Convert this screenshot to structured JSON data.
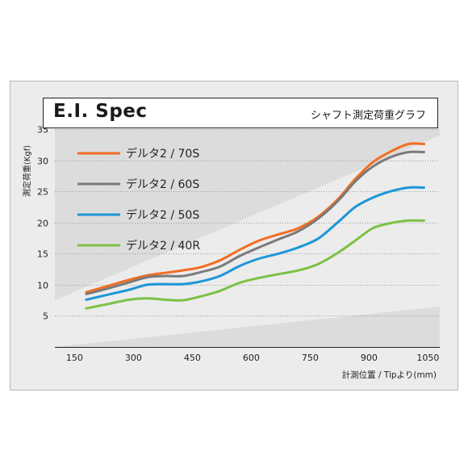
{
  "header": {
    "title": "E.I. Spec",
    "subtitle": "シャフト測定荷重グラフ"
  },
  "chart_data": {
    "type": "line",
    "title": "E.I. Spec",
    "subtitle": "シャフト測定荷重グラフ",
    "xlabel": "計測位置 / Tipより(mm)",
    "ylabel": "測定荷重(Kgf)",
    "xlim": [
      100,
      1080
    ],
    "ylim": [
      0,
      35
    ],
    "xticks": [
      "150",
      "300",
      "450",
      "600",
      "750",
      "900",
      "1050"
    ],
    "yticks": [
      "5",
      "10",
      "15",
      "20",
      "25",
      "30",
      "35"
    ],
    "legend_position": "top-left",
    "grid": true,
    "x": [
      180,
      235,
      290,
      335,
      380,
      425,
      470,
      520,
      570,
      620,
      670,
      720,
      770,
      820,
      865,
      910,
      955,
      1000,
      1040
    ],
    "series": [
      {
        "name": "デルタ2 / 70S",
        "color": "#f26d21",
        "values": [
          8.8,
          9.8,
          10.8,
          11.5,
          11.9,
          12.3,
          12.8,
          13.9,
          15.6,
          17.1,
          18.1,
          19.1,
          20.9,
          23.7,
          27.0,
          29.7,
          31.4,
          32.6,
          32.6
        ]
      },
      {
        "name": "デルタ2 / 60S",
        "color": "#7a7a7a",
        "values": [
          8.5,
          9.4,
          10.4,
          11.2,
          11.4,
          11.4,
          12.0,
          12.9,
          14.6,
          16.0,
          17.3,
          18.6,
          20.6,
          23.4,
          26.6,
          29.0,
          30.5,
          31.3,
          31.3
        ]
      },
      {
        "name": "デルタ2 / 50S",
        "color": "#1d96d8",
        "values": [
          7.6,
          8.4,
          9.2,
          10.0,
          10.1,
          10.1,
          10.5,
          11.4,
          13.0,
          14.2,
          15.0,
          16.0,
          17.4,
          20.0,
          22.5,
          24.0,
          25.0,
          25.6,
          25.6
        ]
      },
      {
        "name": "デルタ2 / 40R",
        "color": "#7cc144",
        "values": [
          6.2,
          6.9,
          7.6,
          7.8,
          7.6,
          7.5,
          8.1,
          9.0,
          10.3,
          11.1,
          11.7,
          12.3,
          13.3,
          15.1,
          17.1,
          19.1,
          19.9,
          20.3,
          20.3
        ]
      }
    ]
  }
}
